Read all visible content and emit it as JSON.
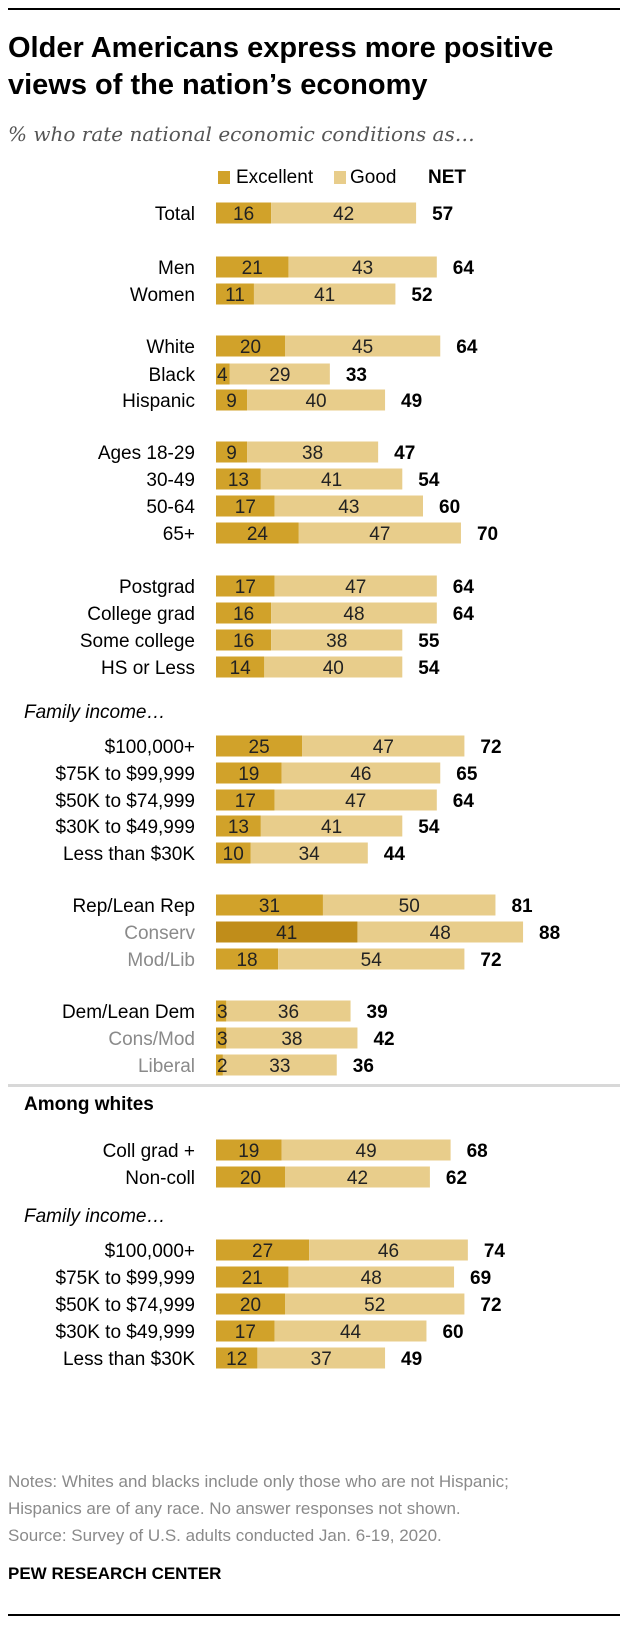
{
  "title": "Older Americans express more positive views of the nation’s economy",
  "subtitle": "% who rate national economic conditions as…",
  "notes": [
    "Notes: Whites and blacks include only those who are not Hispanic;",
    "Hispanics are of any race. No answer responses not shown.",
    "Source: Survey of U.S. adults conducted Jan. 6-19, 2020."
  ],
  "brand": "PEW RESEARCH CENTER",
  "colors": {
    "excellent": "#d1a22a",
    "good": "#e8cd8b",
    "dark_excellent": "#c08d1a",
    "muted_label": "#8a8a8a"
  },
  "chart_data": {
    "type": "bar",
    "orientation": "horizontal",
    "stacked": true,
    "legend": {
      "entries": [
        "Excellent",
        "Good"
      ],
      "net_label": "NET",
      "placement": "top"
    },
    "series": [
      {
        "name": "Excellent",
        "values": [
          16,
          21,
          11,
          20,
          4,
          9,
          9,
          13,
          17,
          24,
          17,
          16,
          16,
          14,
          25,
          19,
          17,
          13,
          10,
          31,
          41,
          18,
          3,
          3,
          2,
          19,
          20,
          27,
          21,
          20,
          17,
          12
        ]
      },
      {
        "name": "Good",
        "values": [
          42,
          43,
          41,
          45,
          29,
          40,
          38,
          41,
          43,
          47,
          47,
          48,
          38,
          40,
          47,
          46,
          47,
          41,
          34,
          50,
          48,
          54,
          36,
          38,
          33,
          49,
          42,
          46,
          48,
          52,
          44,
          37
        ]
      }
    ],
    "net": [
      57,
      64,
      52,
      64,
      33,
      49,
      47,
      54,
      60,
      70,
      64,
      64,
      55,
      54,
      72,
      65,
      64,
      54,
      44,
      81,
      88,
      72,
      39,
      42,
      36,
      68,
      62,
      74,
      69,
      72,
      60,
      49
    ],
    "categories": [
      "Total",
      "Men",
      "Women",
      "White",
      "Black",
      "Hispanic",
      "Ages 18-29",
      "30-49",
      "50-64",
      "65+",
      "Postgrad",
      "College grad",
      "Some college",
      "HS or Less",
      "$100,000+",
      "$75K to $99,999",
      "$50K to $74,999",
      "$30K to $49,999",
      "Less than $30K",
      "Rep/Lean Rep",
      "Conserv",
      "Mod/Lib",
      "Dem/Lean Dem",
      "Cons/Mod",
      "Liberal",
      "Coll grad +",
      "Non-coll",
      "$100,000+",
      "$75K to $99,999",
      "$50K to $74,999",
      "$30K to $49,999",
      "Less than $30K"
    ],
    "muted_categories": [
      20,
      21,
      23,
      24
    ],
    "group_headers": [
      {
        "before_index": 14,
        "text": "Family income…",
        "style": "italic"
      },
      {
        "before_index": 25,
        "text": "Among whites",
        "style": "bold"
      },
      {
        "before_index": 27,
        "text": "Family income…",
        "style": "italic"
      }
    ],
    "xlim": [
      0,
      100
    ]
  }
}
